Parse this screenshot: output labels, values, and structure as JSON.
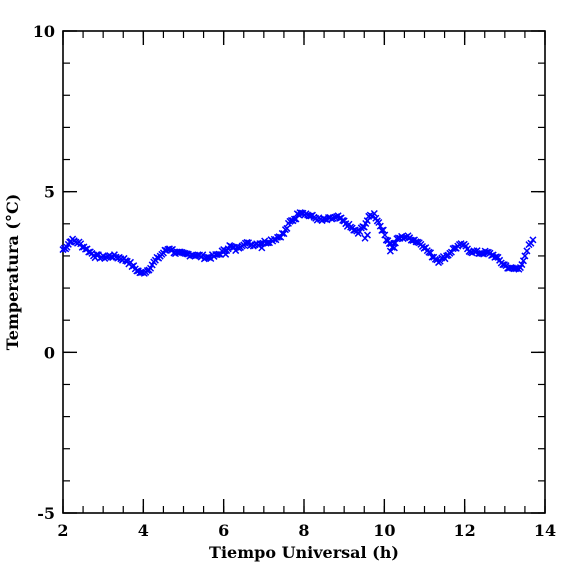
{
  "chart_data": {
    "type": "scatter",
    "xlabel": "Tiempo Universal (h)",
    "ylabel": "Temperatura (°C)",
    "xlim": [
      2,
      14
    ],
    "ylim": [
      -5,
      10
    ],
    "xticks": [
      2,
      4,
      6,
      8,
      10,
      12,
      14
    ],
    "yticks": [
      -5,
      0,
      5,
      10
    ],
    "x_minor_step": 0.5,
    "y_minor_step": 1,
    "marker": "x",
    "color": "#0000ff",
    "grid": false,
    "keypoints": [
      [
        2.0,
        3.2
      ],
      [
        2.1,
        3.3
      ],
      [
        2.2,
        3.5
      ],
      [
        2.4,
        3.4
      ],
      [
        2.6,
        3.2
      ],
      [
        2.8,
        3.0
      ],
      [
        3.0,
        2.95
      ],
      [
        3.2,
        3.0
      ],
      [
        3.4,
        2.95
      ],
      [
        3.6,
        2.85
      ],
      [
        3.8,
        2.6
      ],
      [
        3.95,
        2.45
      ],
      [
        4.1,
        2.55
      ],
      [
        4.3,
        2.85
      ],
      [
        4.5,
        3.1
      ],
      [
        4.65,
        3.25
      ],
      [
        4.8,
        3.1
      ],
      [
        5.0,
        3.05
      ],
      [
        5.2,
        3.05
      ],
      [
        5.4,
        3.0
      ],
      [
        5.6,
        2.95
      ],
      [
        5.8,
        3.0
      ],
      [
        6.0,
        3.15
      ],
      [
        6.15,
        3.3
      ],
      [
        6.3,
        3.2
      ],
      [
        6.5,
        3.4
      ],
      [
        6.7,
        3.35
      ],
      [
        6.9,
        3.4
      ],
      [
        7.1,
        3.45
      ],
      [
        7.3,
        3.55
      ],
      [
        7.5,
        3.7
      ],
      [
        7.65,
        4.05
      ],
      [
        7.8,
        4.2
      ],
      [
        7.9,
        4.4
      ],
      [
        8.05,
        4.3
      ],
      [
        8.25,
        4.2
      ],
      [
        8.45,
        4.1
      ],
      [
        8.65,
        4.15
      ],
      [
        8.85,
        4.2
      ],
      [
        9.0,
        4.05
      ],
      [
        9.2,
        3.85
      ],
      [
        9.35,
        3.7
      ],
      [
        9.5,
        3.95
      ],
      [
        9.65,
        4.25
      ],
      [
        9.75,
        4.3
      ],
      [
        9.9,
        3.95
      ],
      [
        10.05,
        3.55
      ],
      [
        10.2,
        3.3
      ],
      [
        10.35,
        3.55
      ],
      [
        10.55,
        3.6
      ],
      [
        10.75,
        3.5
      ],
      [
        10.95,
        3.35
      ],
      [
        11.15,
        3.05
      ],
      [
        11.35,
        2.85
      ],
      [
        11.55,
        3.0
      ],
      [
        11.75,
        3.25
      ],
      [
        11.95,
        3.35
      ],
      [
        12.15,
        3.15
      ],
      [
        12.35,
        3.1
      ],
      [
        12.55,
        3.1
      ],
      [
        12.75,
        3.0
      ],
      [
        12.95,
        2.75
      ],
      [
        13.15,
        2.6
      ],
      [
        13.35,
        2.6
      ],
      [
        13.5,
        2.95
      ],
      [
        13.6,
        3.3
      ],
      [
        13.7,
        3.5
      ]
    ],
    "anomalies": [
      [
        9.52,
        3.55
      ],
      [
        9.58,
        3.65
      ],
      [
        10.15,
        3.15
      ],
      [
        10.25,
        3.25
      ],
      [
        6.05,
        3.05
      ],
      [
        6.95,
        3.25
      ]
    ]
  },
  "style": {
    "marker_color": "#0000ff",
    "axis_color": "#000000",
    "background": "#ffffff"
  }
}
